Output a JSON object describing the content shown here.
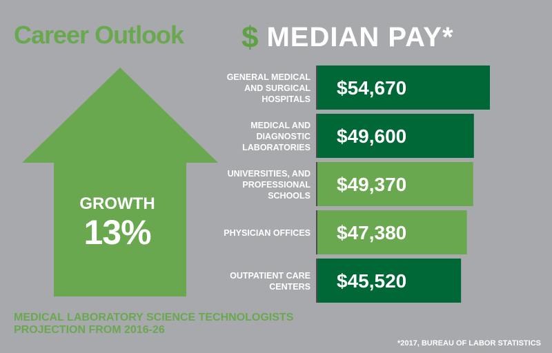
{
  "title": "Career Outlook",
  "header": {
    "dollar_sign": "$",
    "label": "MEDIAN PAY*"
  },
  "growth": {
    "label": "GROWTH",
    "value": "13%"
  },
  "chart_data": {
    "type": "bar",
    "orientation": "horizontal",
    "categories": [
      [
        "GENERAL MEDICAL",
        "AND SURGICAL",
        "HOSPITALS"
      ],
      [
        "MEDICAL AND",
        "DIAGNOSTIC",
        "LABORATORIES"
      ],
      [
        "UNIVERSITIES, AND",
        "PROFESSIONAL",
        "SCHOOLS"
      ],
      [
        "PHYSICIAN OFFICES"
      ],
      [
        "OUTPATIENT CARE",
        "CENTERS"
      ]
    ],
    "values": [
      54670,
      49600,
      49370,
      47380,
      45520
    ],
    "value_labels": [
      "$54,670",
      "$49,600",
      "$49,370",
      "$47,380",
      "$45,520"
    ],
    "bar_colors": [
      "#006837",
      "#006837",
      "#6aa84f",
      "#6aa84f",
      "#006837"
    ]
  },
  "footer": {
    "projection_line1": "MEDICAL LABORATORY SCIENCE TECHNOLOGISTS",
    "projection_line2": "PROJECTION FROM 2016-26",
    "source": "*2017, BUREAU OF LABOR STATISTICS"
  },
  "colors": {
    "background": "#a7a9ac",
    "light_green": "#6aa84f",
    "dark_green": "#006837",
    "text_white": "#ffffff"
  }
}
